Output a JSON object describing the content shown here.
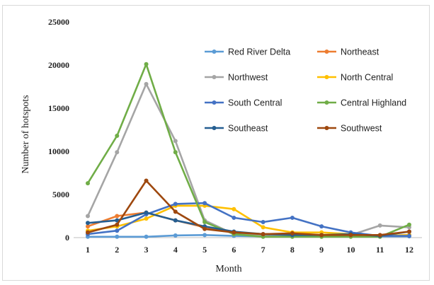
{
  "chart_data": {
    "type": "line",
    "title": "",
    "xlabel": "Month",
    "ylabel": "Number of hotspots",
    "x": [
      1,
      2,
      3,
      4,
      5,
      6,
      7,
      8,
      9,
      10,
      11,
      12
    ],
    "ylim": [
      0,
      25000
    ],
    "yticks": [
      0,
      5000,
      10000,
      15000,
      20000,
      25000
    ],
    "ytick_labels": [
      "0",
      "5000",
      "10000",
      "15000",
      "20000",
      "25000"
    ],
    "grid": false,
    "legend_position": "top-right",
    "series": [
      {
        "name": "Red River Delta",
        "color": "#5b9bd5",
        "values": [
          100,
          100,
          100,
          250,
          300,
          200,
          150,
          150,
          150,
          150,
          150,
          150
        ]
      },
      {
        "name": "Northeast",
        "color": "#ed7d31",
        "values": [
          1300,
          2500,
          2900,
          2000,
          1200,
          600,
          400,
          400,
          300,
          200,
          200,
          300
        ]
      },
      {
        "name": "Northwest",
        "color": "#a5a5a5",
        "values": [
          2500,
          9900,
          17800,
          11200,
          2000,
          400,
          200,
          200,
          200,
          300,
          1400,
          1200
        ]
      },
      {
        "name": "North Central",
        "color": "#ffc000",
        "values": [
          800,
          1300,
          2200,
          3700,
          3700,
          3300,
          1200,
          600,
          600,
          400,
          200,
          300
        ]
      },
      {
        "name": "South Central",
        "color": "#4472c4",
        "values": [
          400,
          800,
          2700,
          3900,
          4000,
          2300,
          1800,
          2300,
          1300,
          600,
          200,
          200
        ]
      },
      {
        "name": "Central Highland",
        "color": "#70ad47",
        "values": [
          6300,
          11800,
          20100,
          9900,
          1800,
          400,
          100,
          100,
          100,
          100,
          100,
          1500
        ]
      },
      {
        "name": "Southeast",
        "color": "#255e91",
        "values": [
          1700,
          2000,
          2900,
          2000,
          1300,
          700,
          400,
          300,
          300,
          400,
          200,
          700
        ]
      },
      {
        "name": "Southwest",
        "color": "#9e480e",
        "values": [
          600,
          1500,
          6600,
          3000,
          1000,
          600,
          400,
          500,
          300,
          300,
          300,
          700
        ]
      }
    ]
  }
}
